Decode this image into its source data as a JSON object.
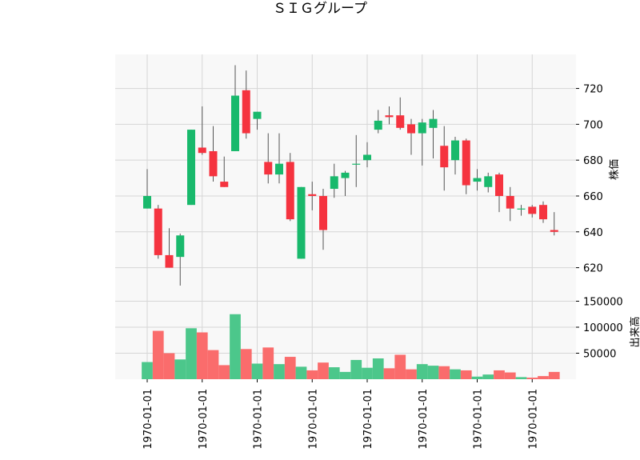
{
  "chart_data": {
    "type": "candlestick",
    "title": "ＳＩＧグループ",
    "price_ylabel": "株価",
    "volume_ylabel": "出来高",
    "x_tick_labels": [
      "1970-01-01",
      "1970-01-01",
      "1970-01-01",
      "1970-01-01",
      "1970-01-01",
      "1970-01-01",
      "1970-01-01",
      "1970-01-01"
    ],
    "x_tick_indices": [
      0,
      5,
      10,
      15,
      20,
      25,
      30,
      35
    ],
    "price_ylim": [
      610,
      739
    ],
    "price_yticks": [
      620,
      640,
      660,
      680,
      700,
      720
    ],
    "volume_ylim": [
      0,
      180000
    ],
    "volume_yticks": [
      50000,
      100000,
      150000
    ],
    "colors": {
      "up": "#19b96c",
      "down": "#f5333f",
      "up_volume": "#4cc78b",
      "down_volume": "#fa6c6c",
      "wick": "#555555"
    },
    "candles": [
      {
        "o": 653,
        "h": 675,
        "l": 653,
        "c": 660,
        "v": 33000
      },
      {
        "o": 653,
        "h": 655,
        "l": 625,
        "c": 627,
        "v": 93000
      },
      {
        "o": 627,
        "h": 642,
        "l": 620,
        "c": 620,
        "v": 50000
      },
      {
        "o": 626,
        "h": 639,
        "l": 609,
        "c": 638,
        "v": 38000
      },
      {
        "o": 655,
        "h": 697,
        "l": 655,
        "c": 697,
        "v": 98000
      },
      {
        "o": 687,
        "h": 710,
        "l": 683,
        "c": 684,
        "v": 90000
      },
      {
        "o": 685,
        "h": 699,
        "l": 668,
        "c": 671,
        "v": 56000
      },
      {
        "o": 668,
        "h": 682,
        "l": 665,
        "c": 665,
        "v": 27000
      },
      {
        "o": 685,
        "h": 733,
        "l": 685,
        "c": 716,
        "v": 125000
      },
      {
        "o": 719,
        "h": 730,
        "l": 692,
        "c": 695,
        "v": 58000
      },
      {
        "o": 703,
        "h": 707,
        "l": 697,
        "c": 707,
        "v": 30000
      },
      {
        "o": 679,
        "h": 695,
        "l": 667,
        "c": 672,
        "v": 61000
      },
      {
        "o": 672,
        "h": 695,
        "l": 667,
        "c": 678,
        "v": 29000
      },
      {
        "o": 679,
        "h": 684,
        "l": 646,
        "c": 647,
        "v": 43000
      },
      {
        "o": 625,
        "h": 665,
        "l": 625,
        "c": 665,
        "v": 24000
      },
      {
        "o": 661,
        "h": 668,
        "l": 652,
        "c": 660,
        "v": 17000
      },
      {
        "o": 660,
        "h": 664,
        "l": 630,
        "c": 641,
        "v": 32000
      },
      {
        "o": 664,
        "h": 678,
        "l": 659,
        "c": 671,
        "v": 23000
      },
      {
        "o": 670,
        "h": 674,
        "l": 660,
        "c": 673,
        "v": 14000
      },
      {
        "o": 678,
        "h": 694,
        "l": 665,
        "c": 678,
        "v": 37000
      },
      {
        "o": 680,
        "h": 690,
        "l": 676,
        "c": 683,
        "v": 22000
      },
      {
        "o": 697,
        "h": 708,
        "l": 695,
        "c": 702,
        "v": 40000
      },
      {
        "o": 705,
        "h": 710,
        "l": 700,
        "c": 704,
        "v": 21000
      },
      {
        "o": 705,
        "h": 715,
        "l": 697,
        "c": 698,
        "v": 47000
      },
      {
        "o": 700,
        "h": 703,
        "l": 683,
        "c": 695,
        "v": 19000
      },
      {
        "o": 695,
        "h": 703,
        "l": 677,
        "c": 701,
        "v": 29000
      },
      {
        "o": 698,
        "h": 708,
        "l": 681,
        "c": 703,
        "v": 26000
      },
      {
        "o": 688,
        "h": 699,
        "l": 663,
        "c": 676,
        "v": 25000
      },
      {
        "o": 680,
        "h": 693,
        "l": 672,
        "c": 691,
        "v": 19000
      },
      {
        "o": 691,
        "h": 692,
        "l": 661,
        "c": 666,
        "v": 17000
      },
      {
        "o": 668,
        "h": 675,
        "l": 663,
        "c": 670,
        "v": 5000
      },
      {
        "o": 665,
        "h": 673,
        "l": 662,
        "c": 671,
        "v": 9000
      },
      {
        "o": 672,
        "h": 673,
        "l": 651,
        "c": 660,
        "v": 17000
      },
      {
        "o": 660,
        "h": 665,
        "l": 646,
        "c": 653,
        "v": 13000
      },
      {
        "o": 653,
        "h": 655,
        "l": 649,
        "c": 653,
        "v": 4000
      },
      {
        "o": 654,
        "h": 655,
        "l": 648,
        "c": 650,
        "v": 3000
      },
      {
        "o": 655,
        "h": 657,
        "l": 645,
        "c": 647,
        "v": 6000
      },
      {
        "o": 641,
        "h": 651,
        "l": 638,
        "c": 640,
        "v": 14000
      }
    ]
  }
}
